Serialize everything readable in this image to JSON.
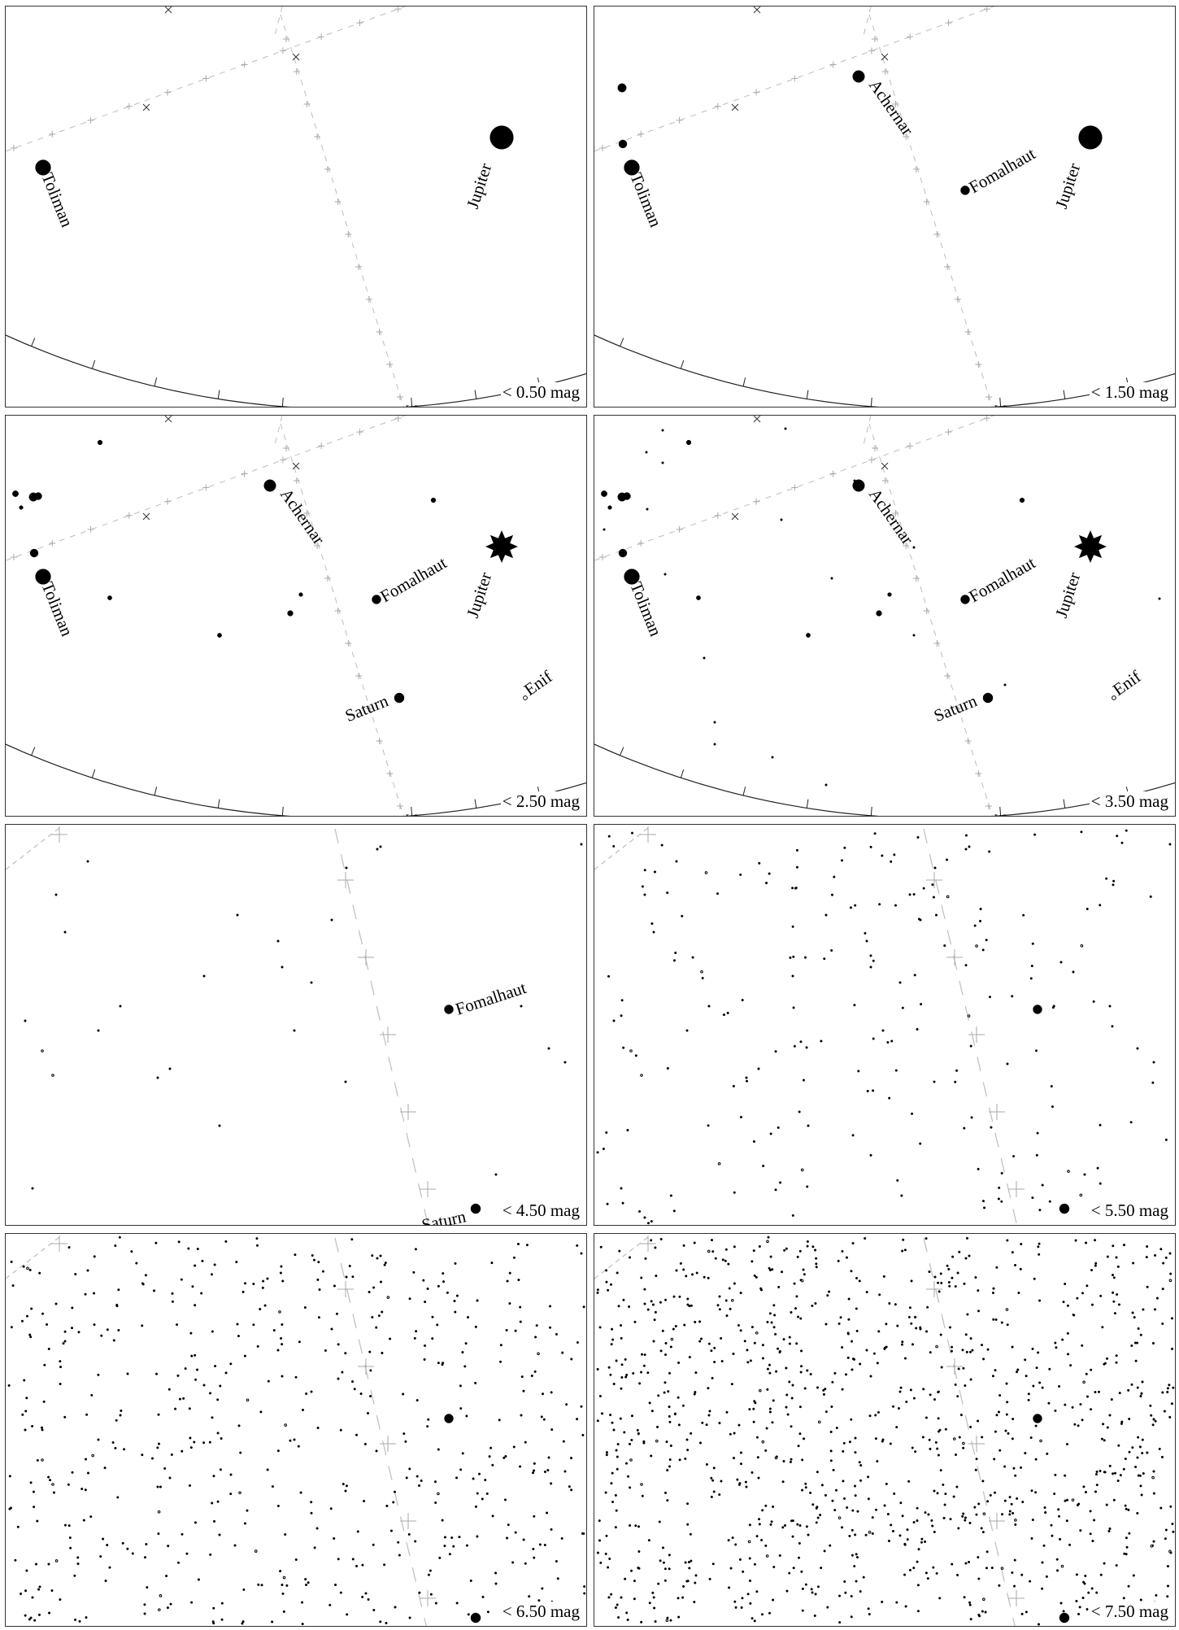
{
  "panels": [
    {
      "mag_label": "< 0.50 mag",
      "limit": 0.5,
      "zoom": "wide",
      "labels": [
        {
          "name": "Toliman"
        },
        {
          "name": "Jupiter"
        }
      ]
    },
    {
      "mag_label": "< 1.50 mag",
      "limit": 1.5,
      "zoom": "wide",
      "labels": [
        {
          "name": "Toliman"
        },
        {
          "name": "Achernar"
        },
        {
          "name": "Fomalhaut"
        },
        {
          "name": "Jupiter"
        }
      ]
    },
    {
      "mag_label": "< 2.50 mag",
      "limit": 2.5,
      "zoom": "wide",
      "labels": [
        {
          "name": "Toliman"
        },
        {
          "name": "Achernar"
        },
        {
          "name": "Fomalhaut"
        },
        {
          "name": "Jupiter"
        },
        {
          "name": "Saturn"
        },
        {
          "name": "Enif"
        }
      ]
    },
    {
      "mag_label": "< 3.50 mag",
      "limit": 3.5,
      "zoom": "wide",
      "labels": [
        {
          "name": "Toliman"
        },
        {
          "name": "Achernar"
        },
        {
          "name": "Fomalhaut"
        },
        {
          "name": "Jupiter"
        },
        {
          "name": "Saturn"
        },
        {
          "name": "Enif"
        }
      ]
    },
    {
      "mag_label": "< 4.50 mag",
      "limit": 4.5,
      "zoom": "close",
      "labels": [
        {
          "name": "Fomalhaut"
        },
        {
          "name": "Saturn"
        }
      ]
    },
    {
      "mag_label": "< 5.50 mag",
      "limit": 5.5,
      "zoom": "close",
      "labels": []
    },
    {
      "mag_label": "< 6.50 mag",
      "limit": 6.5,
      "zoom": "close",
      "labels": []
    },
    {
      "mag_label": "< 7.50 mag",
      "limit": 7.5,
      "zoom": "close",
      "labels": []
    }
  ]
}
